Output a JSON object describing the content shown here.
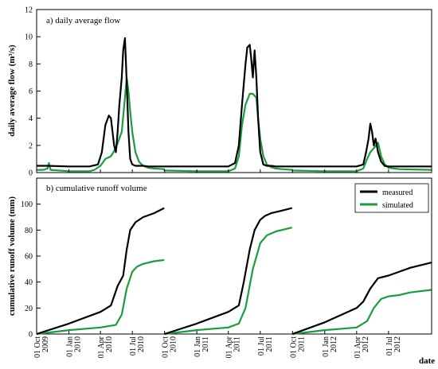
{
  "colors": {
    "measured": "#000000",
    "simulated": "#1a9e3a"
  },
  "chart_data": [
    {
      "type": "line",
      "title": "a) daily average flow",
      "xlabel": "",
      "ylabel": "daily average flow (m³/s)",
      "ylim": [
        0,
        12
      ],
      "yticks": [
        0,
        2,
        4,
        6,
        8,
        10,
        12
      ],
      "grid": false,
      "series": [
        {
          "name": "measured",
          "x": [
            "2009-10-01",
            "2009-11-01",
            "2010-01-01",
            "2010-03-01",
            "2010-03-25",
            "2010-04-05",
            "2010-04-15",
            "2010-04-25",
            "2010-05-01",
            "2010-05-10",
            "2010-05-15",
            "2010-05-20",
            "2010-05-25",
            "2010-06-01",
            "2010-06-05",
            "2010-06-10",
            "2010-06-13",
            "2010-06-16",
            "2010-06-20",
            "2010-06-25",
            "2010-07-01",
            "2010-07-10",
            "2010-07-20",
            "2010-08-01",
            "2010-08-15",
            "2010-09-01",
            "2010-09-30",
            "2010-10-01",
            "2010-12-01",
            "2011-02-01",
            "2011-04-01",
            "2011-04-20",
            "2011-05-01",
            "2011-05-10",
            "2011-05-20",
            "2011-05-25",
            "2011-06-01",
            "2011-06-05",
            "2011-06-10",
            "2011-06-15",
            "2011-06-20",
            "2011-06-25",
            "2011-07-01",
            "2011-07-10",
            "2011-07-20",
            "2011-08-01",
            "2011-08-15",
            "2011-09-01",
            "2011-09-30",
            "2011-10-01",
            "2011-12-01",
            "2012-02-01",
            "2012-04-01",
            "2012-04-20",
            "2012-04-28",
            "2012-05-05",
            "2012-05-10",
            "2012-05-15",
            "2012-05-20",
            "2012-05-25",
            "2012-06-01",
            "2012-06-10",
            "2012-06-20",
            "2012-07-01",
            "2012-08-01",
            "2012-09-01",
            "2012-10-31"
          ],
          "values": [
            0.5,
            0.5,
            0.45,
            0.45,
            0.6,
            1.5,
            3.5,
            4.2,
            4.0,
            2.0,
            1.5,
            3.0,
            5.0,
            7.0,
            9.0,
            9.9,
            8.0,
            6.0,
            3.0,
            1.0,
            0.6,
            0.5,
            0.5,
            0.5,
            0.45,
            0.45,
            0.45,
            0.45,
            0.45,
            0.45,
            0.45,
            0.7,
            2.0,
            5.0,
            8.0,
            9.2,
            9.4,
            8.5,
            7.0,
            9.0,
            7.0,
            4.0,
            1.5,
            0.6,
            0.5,
            0.5,
            0.45,
            0.45,
            0.45,
            0.45,
            0.45,
            0.45,
            0.45,
            0.6,
            1.5,
            2.5,
            3.6,
            3.0,
            2.0,
            2.5,
            1.5,
            0.8,
            0.5,
            0.45,
            0.45,
            0.45,
            0.45
          ]
        },
        {
          "name": "simulated",
          "x": [
            "2009-10-01",
            "2009-10-20",
            "2009-11-01",
            "2009-11-05",
            "2009-11-10",
            "2010-01-01",
            "2010-03-01",
            "2010-03-15",
            "2010-04-01",
            "2010-04-15",
            "2010-05-01",
            "2010-05-15",
            "2010-06-01",
            "2010-06-10",
            "2010-06-15",
            "2010-06-20",
            "2010-06-25",
            "2010-07-01",
            "2010-07-10",
            "2010-07-20",
            "2010-08-01",
            "2010-08-15",
            "2010-09-01",
            "2010-09-30",
            "2010-10-01",
            "2011-01-01",
            "2011-04-01",
            "2011-04-20",
            "2011-05-01",
            "2011-05-10",
            "2011-05-20",
            "2011-06-01",
            "2011-06-10",
            "2011-06-20",
            "2011-06-25",
            "2011-07-01",
            "2011-07-10",
            "2011-07-20",
            "2011-08-01",
            "2011-08-15",
            "2011-09-01",
            "2011-09-30",
            "2011-10-01",
            "2012-01-01",
            "2012-04-01",
            "2012-04-20",
            "2012-05-01",
            "2012-05-10",
            "2012-05-20",
            "2012-06-01",
            "2012-06-10",
            "2012-06-20",
            "2012-07-01",
            "2012-08-01",
            "2012-10-31"
          ],
          "values": [
            0.2,
            0.2,
            0.3,
            0.7,
            0.2,
            0.1,
            0.1,
            0.2,
            0.5,
            1.0,
            1.2,
            1.8,
            3.0,
            5.5,
            7.0,
            6.0,
            4.5,
            3.0,
            1.5,
            0.8,
            0.5,
            0.35,
            0.3,
            0.25,
            0.15,
            0.1,
            0.1,
            0.3,
            1.2,
            3.5,
            5.0,
            5.8,
            5.8,
            5.5,
            4.0,
            2.5,
            1.2,
            0.6,
            0.4,
            0.3,
            0.25,
            0.2,
            0.15,
            0.1,
            0.1,
            0.3,
            1.0,
            1.5,
            1.8,
            2.2,
            1.2,
            0.6,
            0.35,
            0.25,
            0.2
          ]
        }
      ]
    },
    {
      "type": "line",
      "title": "b) cumulative runoff volume",
      "xlabel": "date",
      "ylabel": "cumulative runoff volume (mm)",
      "ylim": [
        0,
        120
      ],
      "yticks": [
        0,
        20,
        40,
        60,
        80,
        100
      ],
      "grid": false,
      "legend": "top-right",
      "x_ticks": [
        {
          "date": "2009-10-01",
          "label": "01 Oct 2009"
        },
        {
          "date": "2010-01-01",
          "label": "01 Jan 2010"
        },
        {
          "date": "2010-04-01",
          "label": "01 Apr 2010"
        },
        {
          "date": "2010-07-01",
          "label": "01 Jul 2010"
        },
        {
          "date": "2010-10-01",
          "label": "01 Oct 2010"
        },
        {
          "date": "2011-01-01",
          "label": "01 Jan 2011"
        },
        {
          "date": "2011-04-01",
          "label": "01 Apr 2011"
        },
        {
          "date": "2011-07-01",
          "label": "01 Jul 2011"
        },
        {
          "date": "2011-10-01",
          "label": "01 Oct 2011"
        },
        {
          "date": "2012-01-01",
          "label": "01 Jan 2012"
        },
        {
          "date": "2012-04-01",
          "label": "01 Apr 2012"
        },
        {
          "date": "2012-07-01",
          "label": "01 Jul 2012"
        }
      ],
      "series": [
        {
          "name": "measured",
          "segments": [
            {
              "x": [
                "2009-10-01",
                "2010-01-01",
                "2010-04-01",
                "2010-05-01",
                "2010-05-20",
                "2010-06-05",
                "2010-06-15",
                "2010-06-25",
                "2010-07-10",
                "2010-08-01",
                "2010-09-01",
                "2010-09-30"
              ],
              "values": [
                0,
                8,
                17,
                22,
                37,
                45,
                65,
                80,
                86,
                90,
                93,
                97
              ]
            },
            {
              "x": [
                "2010-10-01",
                "2011-01-01",
                "2011-04-01",
                "2011-05-01",
                "2011-05-15",
                "2011-06-01",
                "2011-06-15",
                "2011-07-01",
                "2011-07-15",
                "2011-08-01",
                "2011-09-01",
                "2011-09-30"
              ],
              "values": [
                0,
                8,
                17,
                22,
                40,
                65,
                80,
                88,
                91,
                93,
                95,
                97
              ]
            },
            {
              "x": [
                "2011-10-01",
                "2012-01-01",
                "2012-04-01",
                "2012-04-20",
                "2012-05-10",
                "2012-06-01",
                "2012-07-01",
                "2012-08-01",
                "2012-09-01",
                "2012-10-31"
              ],
              "values": [
                0,
                9,
                20,
                25,
                35,
                43,
                45,
                48,
                51,
                55
              ]
            }
          ]
        },
        {
          "name": "simulated",
          "segments": [
            {
              "x": [
                "2009-10-01",
                "2010-01-01",
                "2010-04-01",
                "2010-05-15",
                "2010-06-01",
                "2010-06-15",
                "2010-07-01",
                "2010-07-15",
                "2010-08-01",
                "2010-09-01",
                "2010-09-30"
              ],
              "values": [
                0,
                3,
                5,
                7,
                15,
                35,
                48,
                52,
                54,
                56,
                57
              ]
            },
            {
              "x": [
                "2010-10-01",
                "2011-01-01",
                "2011-04-01",
                "2011-05-01",
                "2011-05-20",
                "2011-06-10",
                "2011-07-01",
                "2011-07-20",
                "2011-08-15",
                "2011-09-30"
              ],
              "values": [
                0,
                3,
                5,
                8,
                20,
                50,
                70,
                76,
                79,
                82
              ]
            },
            {
              "x": [
                "2011-10-01",
                "2012-01-01",
                "2012-04-01",
                "2012-05-01",
                "2012-05-20",
                "2012-06-10",
                "2012-07-01",
                "2012-08-01",
                "2012-09-01",
                "2012-10-31"
              ],
              "values": [
                0,
                3,
                5,
                10,
                20,
                27,
                29,
                30,
                32,
                34
              ]
            }
          ]
        }
      ]
    }
  ]
}
